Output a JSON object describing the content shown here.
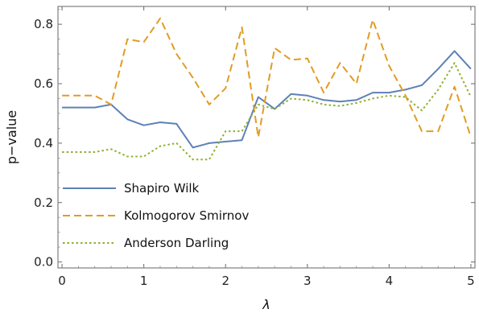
{
  "chart_data": {
    "type": "line",
    "title": "",
    "xlabel": "λ",
    "ylabel": "p−value",
    "xlim": [
      -0.05,
      5.05
    ],
    "ylim": [
      -0.02,
      0.86
    ],
    "xticks": [
      0,
      1,
      2,
      3,
      4,
      5
    ],
    "yticks": [
      0.0,
      0.2,
      0.4,
      0.6,
      0.8
    ],
    "ytick_labels": [
      "0.0",
      "0.2",
      "0.4",
      "0.6",
      "0.8"
    ],
    "grid": false,
    "legend_position": "bottom-left",
    "x": [
      0,
      0.2,
      0.4,
      0.6,
      0.8,
      1.0,
      1.2,
      1.4,
      1.6,
      1.8,
      2.0,
      2.2,
      2.4,
      2.6,
      2.8,
      3.0,
      3.2,
      3.4,
      3.6,
      3.8,
      4.0,
      4.2,
      4.4,
      4.6,
      4.8,
      5.0
    ],
    "series": [
      {
        "name": "Shapiro Wilk",
        "color": "#5e81b5",
        "dash": "solid",
        "values": [
          0.52,
          0.52,
          0.52,
          0.53,
          0.48,
          0.46,
          0.47,
          0.465,
          0.385,
          0.4,
          0.405,
          0.41,
          0.555,
          0.515,
          0.565,
          0.56,
          0.545,
          0.54,
          0.545,
          0.57,
          0.57,
          0.58,
          0.595,
          0.65,
          0.71,
          0.65
        ]
      },
      {
        "name": "Kolmogorov Smirnov",
        "color": "#e19c24",
        "dash": "dashed",
        "values": [
          0.56,
          0.56,
          0.56,
          0.53,
          0.75,
          0.74,
          0.82,
          0.7,
          0.62,
          0.53,
          0.585,
          0.79,
          0.42,
          0.72,
          0.68,
          0.685,
          0.57,
          0.67,
          0.6,
          0.815,
          0.66,
          0.56,
          0.44,
          0.44,
          0.59,
          0.42
        ]
      },
      {
        "name": "Anderson Darling",
        "color": "#8fb032",
        "dash": "dotted",
        "values": [
          0.37,
          0.37,
          0.37,
          0.38,
          0.355,
          0.355,
          0.39,
          0.4,
          0.345,
          0.345,
          0.44,
          0.44,
          0.53,
          0.515,
          0.55,
          0.545,
          0.53,
          0.525,
          0.535,
          0.55,
          0.56,
          0.555,
          0.51,
          0.58,
          0.67,
          0.555
        ]
      }
    ]
  }
}
